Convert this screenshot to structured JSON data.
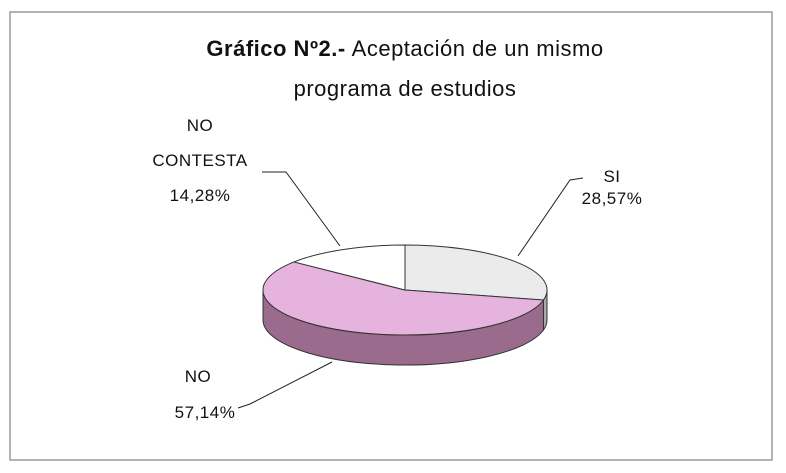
{
  "chart_data": {
    "type": "pie",
    "title": [
      "Gráfico Nº2.-",
      "Aceptación de un mismo",
      "programa de estudios"
    ],
    "categories": [
      "SI",
      "NO",
      "NO CONTESTA"
    ],
    "values": [
      28.57,
      57.14,
      14.28
    ],
    "value_labels": [
      "28,57%",
      "57,14%",
      "14,28%"
    ],
    "colors": [
      "#ebebeb",
      "#e6b3df",
      "#ffffff"
    ],
    "side_colors": [
      "#a9a9a9",
      "#9a6b8c",
      "#bdbdbd"
    ]
  }
}
